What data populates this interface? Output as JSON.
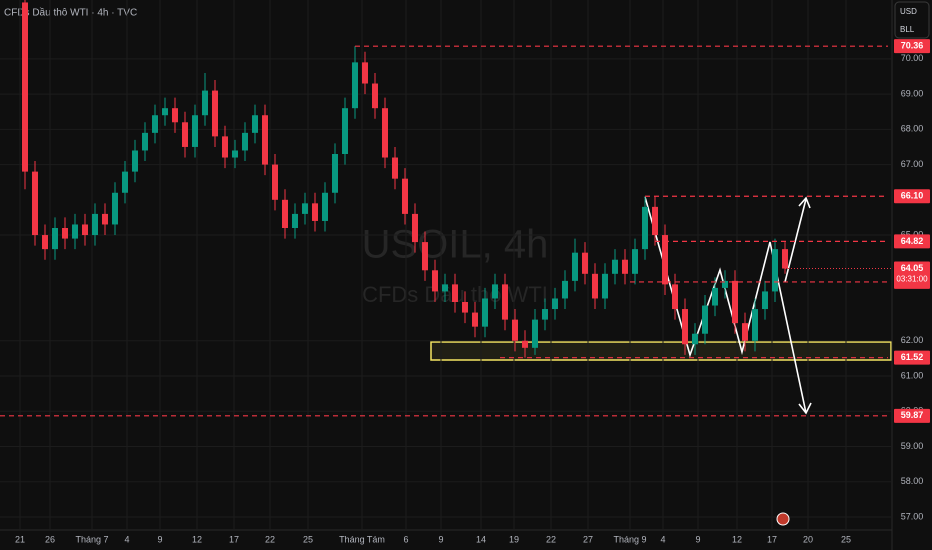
{
  "chart_data": {
    "type": "candlestick",
    "title": "CFDs Dầu thô WTI · 4h · TVC",
    "watermark": "USOIL, 4h",
    "watermark_subtitle": "CFDs Dầu thô WTI",
    "currency": "USD",
    "unit": "BLL",
    "countdown": "03:31:00",
    "up_color": "#089981",
    "down_color": "#f23645",
    "level_color": "#f23645",
    "grid": true,
    "x": [
      2.5,
      3.5,
      4.5,
      5.5,
      6.5,
      7.5,
      8.5,
      9.5,
      10.5,
      11.5,
      12.5,
      13.5,
      14.5,
      15.5,
      16.5,
      17.5,
      18.5,
      19.5,
      20.5,
      21.5,
      22.5,
      23.5,
      24.5,
      25.5,
      26.5,
      27.5,
      28.5,
      29.5,
      30.5,
      31.5,
      32.5,
      33.5,
      34.5,
      35.5,
      36.5,
      37.5,
      38.5,
      39.5,
      40.5,
      41.5,
      42.5,
      43.5,
      44.5,
      45.5,
      46.5,
      47.5,
      48.5,
      49.5,
      50.5,
      51.5,
      52.5,
      53.5,
      54.5,
      55.5,
      56.5,
      57.5,
      58.5,
      59.5,
      60.5,
      61.5,
      62.5,
      63.5,
      64.5,
      65.5,
      66.5,
      67.5,
      68.5,
      69.5,
      70.5,
      71.5,
      72.5,
      73.5,
      74.5,
      75.5,
      76.5,
      77.5,
      78.5
    ],
    "open": [
      71.6,
      66.8,
      65.0,
      64.6,
      65.2,
      64.9,
      65.3,
      65.0,
      65.6,
      65.3,
      66.2,
      66.8,
      67.4,
      67.9,
      68.4,
      68.6,
      68.2,
      67.5,
      68.4,
      69.1,
      67.8,
      67.2,
      67.4,
      67.9,
      68.4,
      67.0,
      66.0,
      65.2,
      65.6,
      65.9,
      65.4,
      66.2,
      67.3,
      68.6,
      69.9,
      69.3,
      68.6,
      67.2,
      66.6,
      65.6,
      64.8,
      64.0,
      63.4,
      63.6,
      63.1,
      62.8,
      62.4,
      63.2,
      63.6,
      62.6,
      62.0,
      61.8,
      62.6,
      62.9,
      63.2,
      63.7,
      64.5,
      63.9,
      63.2,
      63.9,
      64.3,
      63.9,
      64.6,
      65.8,
      65.0,
      63.6,
      62.9,
      61.9,
      62.2,
      63.0,
      63.5,
      63.7,
      62.5,
      62.0,
      62.9,
      63.4,
      64.6
    ],
    "high": [
      71.7,
      67.1,
      65.3,
      65.5,
      65.5,
      65.6,
      65.6,
      65.9,
      65.9,
      66.5,
      67.1,
      67.7,
      68.2,
      68.7,
      68.9,
      68.9,
      68.5,
      68.7,
      69.6,
      69.4,
      68.1,
      67.7,
      68.2,
      68.7,
      68.7,
      67.3,
      66.3,
      65.9,
      66.2,
      66.2,
      66.5,
      67.6,
      68.9,
      70.36,
      70.2,
      69.6,
      68.9,
      67.5,
      66.9,
      65.9,
      65.1,
      64.3,
      63.9,
      63.9,
      63.4,
      63.1,
      63.5,
      63.9,
      63.9,
      62.9,
      62.3,
      62.9,
      63.2,
      63.5,
      64.0,
      64.9,
      64.8,
      64.2,
      64.2,
      64.6,
      64.6,
      64.9,
      66.1,
      66.1,
      65.3,
      63.9,
      63.2,
      62.5,
      63.3,
      63.8,
      64.0,
      64.0,
      62.8,
      63.2,
      63.7,
      64.9,
      64.8
    ],
    "low": [
      66.3,
      64.7,
      64.3,
      64.3,
      64.6,
      64.6,
      64.7,
      64.7,
      65.0,
      65.0,
      65.9,
      66.5,
      67.1,
      67.6,
      68.1,
      67.9,
      67.2,
      67.2,
      68.1,
      67.5,
      66.9,
      66.9,
      67.1,
      67.6,
      66.7,
      65.7,
      64.9,
      64.9,
      65.3,
      65.1,
      65.1,
      65.9,
      67.0,
      68.3,
      69.0,
      68.3,
      66.9,
      66.3,
      65.3,
      64.5,
      63.7,
      63.1,
      63.1,
      62.8,
      62.5,
      62.1,
      62.1,
      62.9,
      62.3,
      61.7,
      61.52,
      61.6,
      62.3,
      62.6,
      62.9,
      63.4,
      63.6,
      62.9,
      62.9,
      63.6,
      63.6,
      63.6,
      64.3,
      64.7,
      63.3,
      62.6,
      61.6,
      61.6,
      61.9,
      62.7,
      63.2,
      62.2,
      61.7,
      61.7,
      62.6,
      63.1,
      63.9
    ],
    "close": [
      66.8,
      65.0,
      64.6,
      65.2,
      64.9,
      65.3,
      65.0,
      65.6,
      65.3,
      66.2,
      66.8,
      67.4,
      67.9,
      68.4,
      68.6,
      68.2,
      67.5,
      68.4,
      69.1,
      67.8,
      67.2,
      67.4,
      67.9,
      68.4,
      67.0,
      66.0,
      65.2,
      65.6,
      65.9,
      65.4,
      66.2,
      67.3,
      68.6,
      69.9,
      69.3,
      68.6,
      67.2,
      66.6,
      65.6,
      64.8,
      64.0,
      63.4,
      63.6,
      63.1,
      62.8,
      62.4,
      63.2,
      63.6,
      62.6,
      62.0,
      61.8,
      62.6,
      62.9,
      63.2,
      63.7,
      64.5,
      63.9,
      63.2,
      63.9,
      64.3,
      63.9,
      64.6,
      65.8,
      65.0,
      63.6,
      62.9,
      61.9,
      62.2,
      63.0,
      63.5,
      63.7,
      62.5,
      62.0,
      62.9,
      63.4,
      64.6,
      64.05
    ],
    "xlim": [
      0,
      89.2
    ],
    "ylim": [
      56.63,
      71.67
    ],
    "xticks": [
      {
        "value": 2.0,
        "label": "21"
      },
      {
        "value": 5.0,
        "label": "26"
      },
      {
        "value": 9.2,
        "label": "Tháng 7"
      },
      {
        "value": 12.7,
        "label": "4"
      },
      {
        "value": 16.0,
        "label": "9"
      },
      {
        "value": 19.7,
        "label": "12"
      },
      {
        "value": 23.4,
        "label": "17"
      },
      {
        "value": 27.0,
        "label": "22"
      },
      {
        "value": 30.8,
        "label": "25"
      },
      {
        "value": 36.2,
        "label": "Tháng Tám"
      },
      {
        "value": 40.6,
        "label": "6"
      },
      {
        "value": 44.1,
        "label": "9"
      },
      {
        "value": 48.1,
        "label": "14"
      },
      {
        "value": 51.4,
        "label": "19"
      },
      {
        "value": 55.1,
        "label": "22"
      },
      {
        "value": 58.8,
        "label": "27"
      },
      {
        "value": 63.0,
        "label": "Tháng 9"
      },
      {
        "value": 66.3,
        "label": "4"
      },
      {
        "value": 69.8,
        "label": "9"
      },
      {
        "value": 73.7,
        "label": "12"
      },
      {
        "value": 77.2,
        "label": "17"
      },
      {
        "value": 80.8,
        "label": "20"
      },
      {
        "value": 84.6,
        "label": "25"
      }
    ],
    "yticks": [
      {
        "value": 57,
        "label": "57.00"
      },
      {
        "value": 58,
        "label": "58.00"
      },
      {
        "value": 59,
        "label": "59.00"
      },
      {
        "value": 60,
        "label": "60.00"
      },
      {
        "value": 61,
        "label": "61.00"
      },
      {
        "value": 62,
        "label": "62.00"
      },
      {
        "value": 65,
        "label": "65.00"
      },
      {
        "value": 67,
        "label": "67.00"
      },
      {
        "value": 68,
        "label": "68.00"
      },
      {
        "value": 69,
        "label": "69.00"
      },
      {
        "value": 70,
        "label": "70.00"
      }
    ],
    "levels": [
      70.36,
      {
        "value": 66.1,
        "label": "66.10"
      },
      64.82,
      63.67,
      61.52,
      59.87
    ]
  }
}
